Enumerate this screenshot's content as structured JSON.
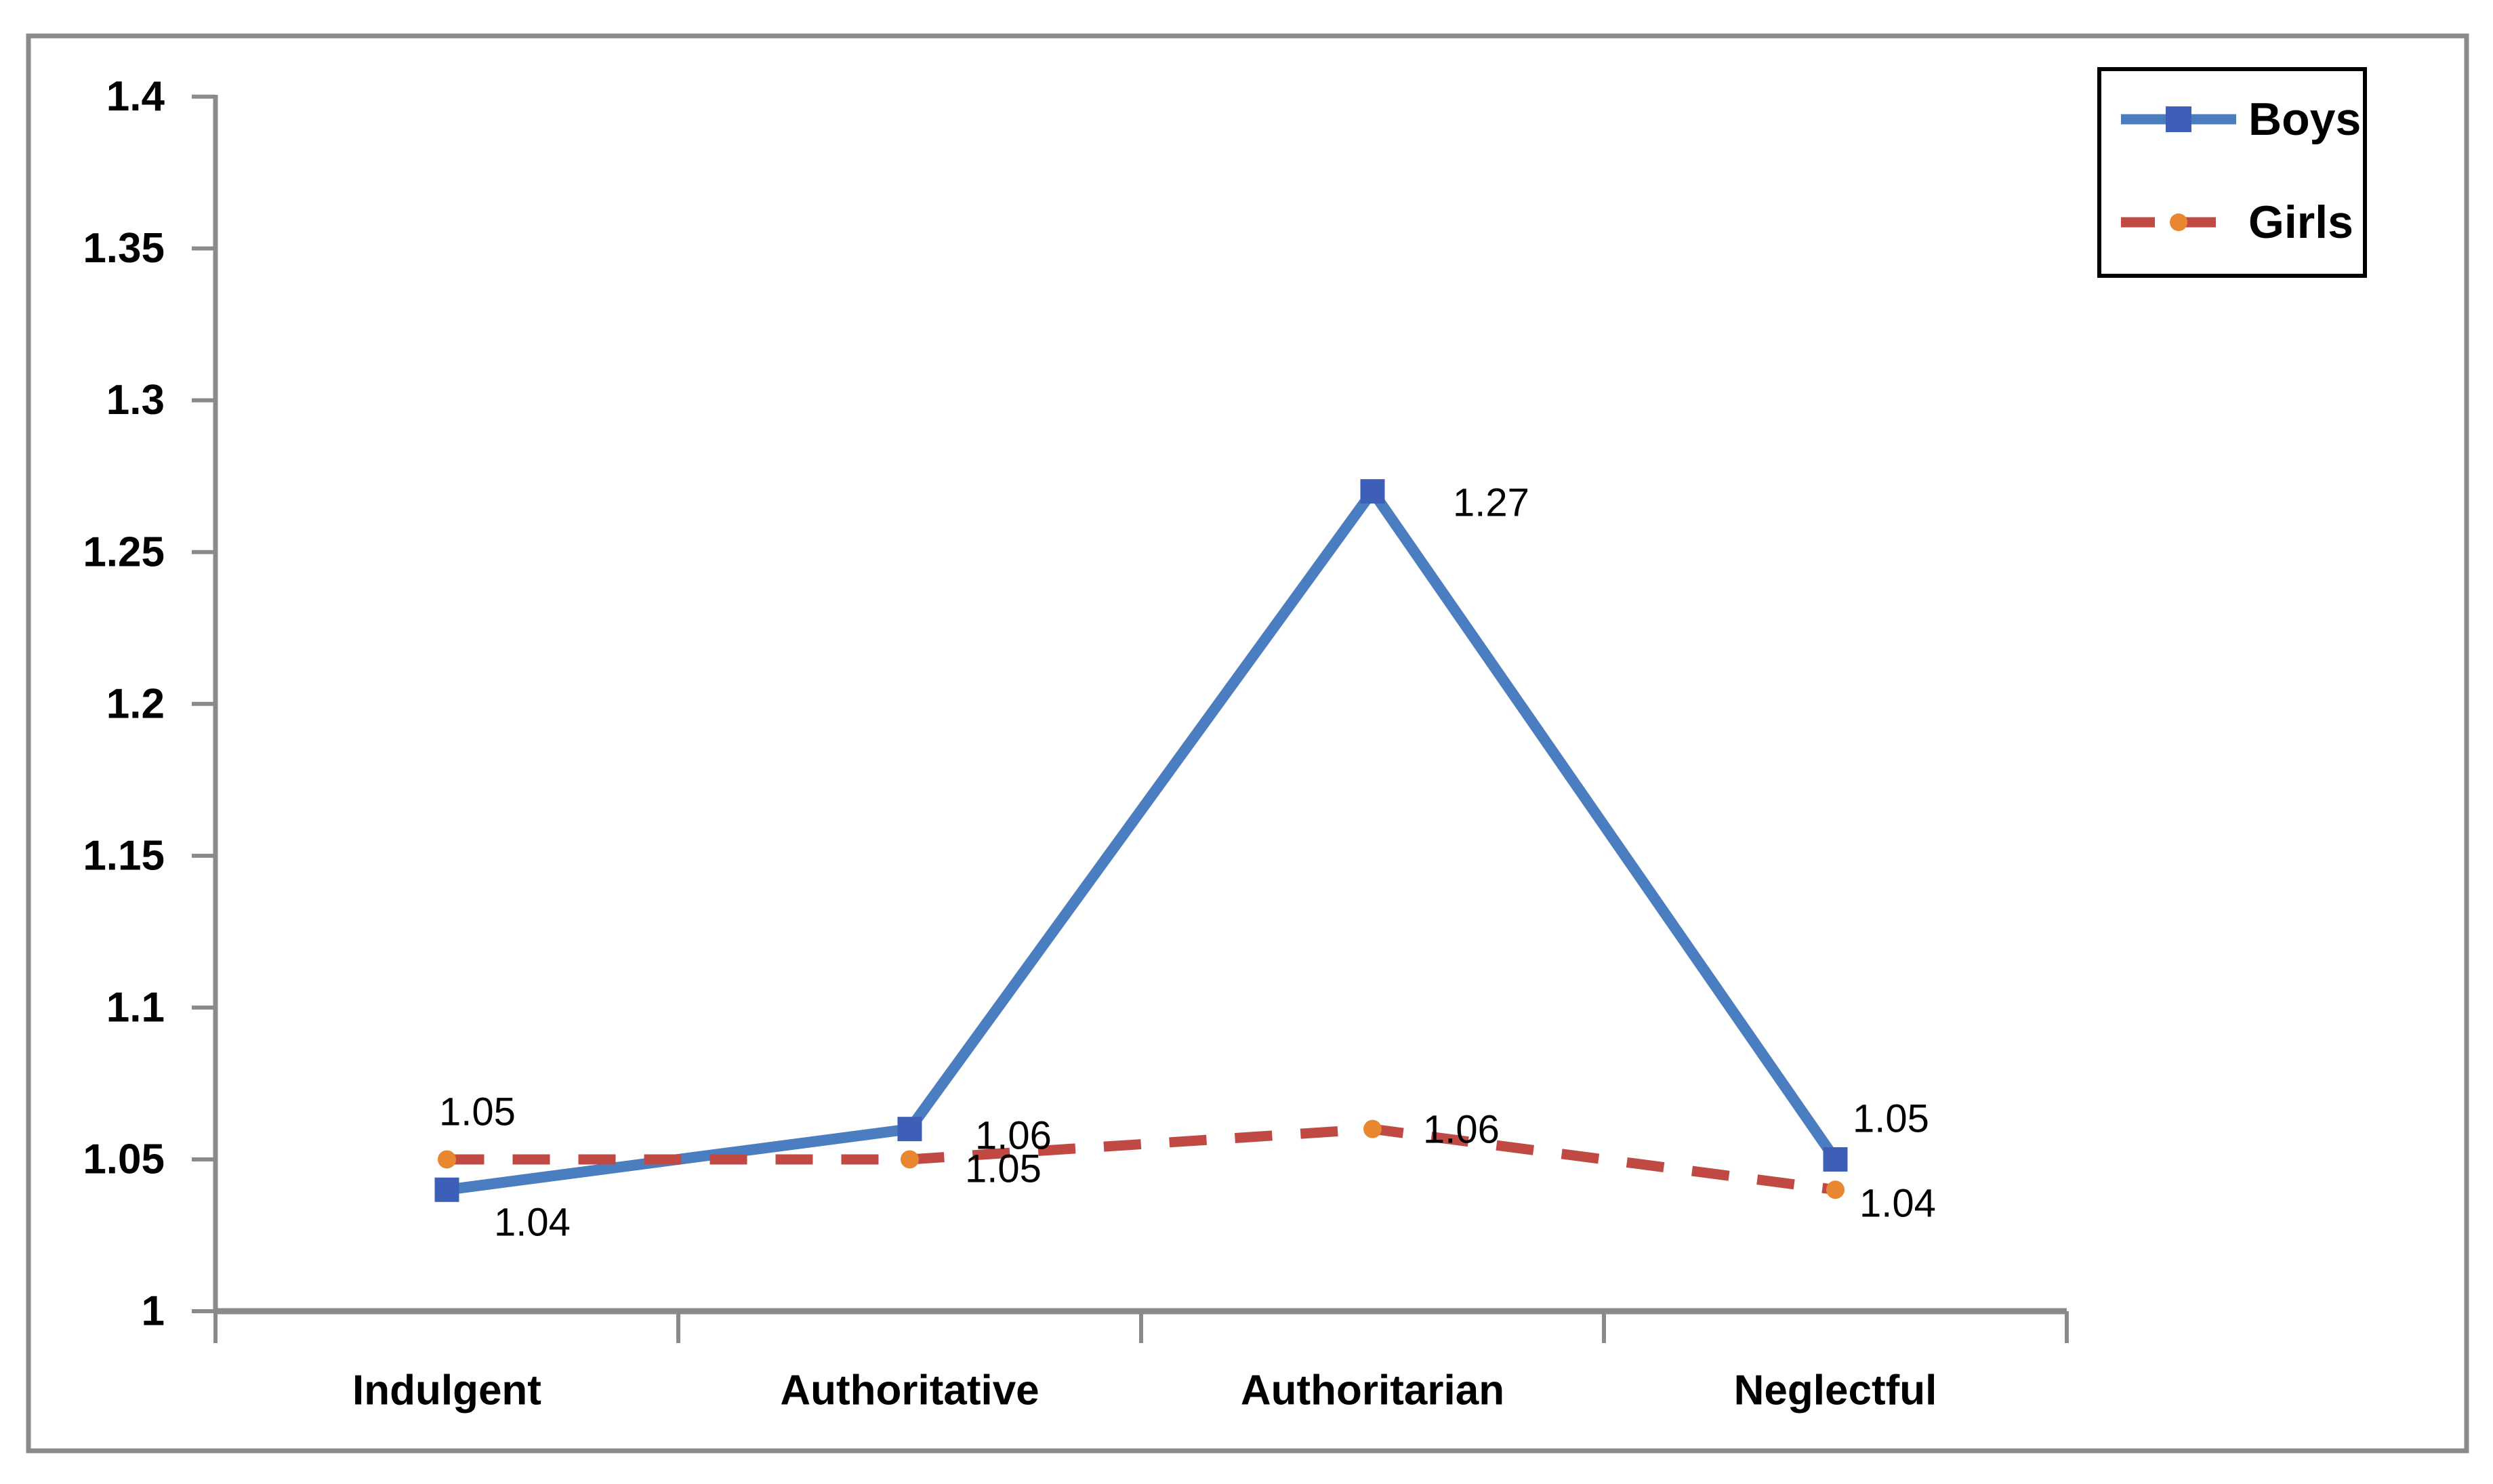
{
  "figure": {
    "background_color": "#ffffff",
    "border_color": "#8a8a8a"
  },
  "chart_data": {
    "type": "line",
    "title": "",
    "xlabel": "",
    "ylabel": "",
    "categories": [
      "Indulgent",
      "Authoritative",
      "Authoritarian",
      "Neglectful"
    ],
    "series": [
      {
        "name": "Boys",
        "values": [
          1.04,
          1.06,
          1.27,
          1.05
        ],
        "point_labels": [
          "1.04",
          "1.06",
          "1.27",
          "1.05"
        ],
        "line_color": "#4a7ec1",
        "marker_color": "#3e5fb7",
        "marker": "square",
        "line_style": "solid"
      },
      {
        "name": "Girls",
        "values": [
          1.05,
          1.05,
          1.06,
          1.04
        ],
        "point_labels": [
          "1.05",
          "1.05",
          "1.06",
          "1.04"
        ],
        "line_color": "#c04a43",
        "marker_color": "#e88730",
        "marker": "circle",
        "line_style": "dashed"
      }
    ],
    "y_axis": {
      "min": 1.0,
      "max": 1.4,
      "tick_step": 0.05,
      "tick_labels": [
        "1",
        "1.05",
        "1.1",
        "1.15",
        "1.2",
        "1.25",
        "1.3",
        "1.35",
        "1.4"
      ]
    },
    "x_axis": {
      "tick_labels": [
        "Indulgent",
        "Authoritative",
        "Authoritarian",
        "Neglectful"
      ]
    },
    "legend": {
      "position": "top-right",
      "entries": [
        "Boys",
        "Girls"
      ]
    },
    "grid": false,
    "axis_color": "#8a8a8a",
    "text_color": "#000000"
  }
}
